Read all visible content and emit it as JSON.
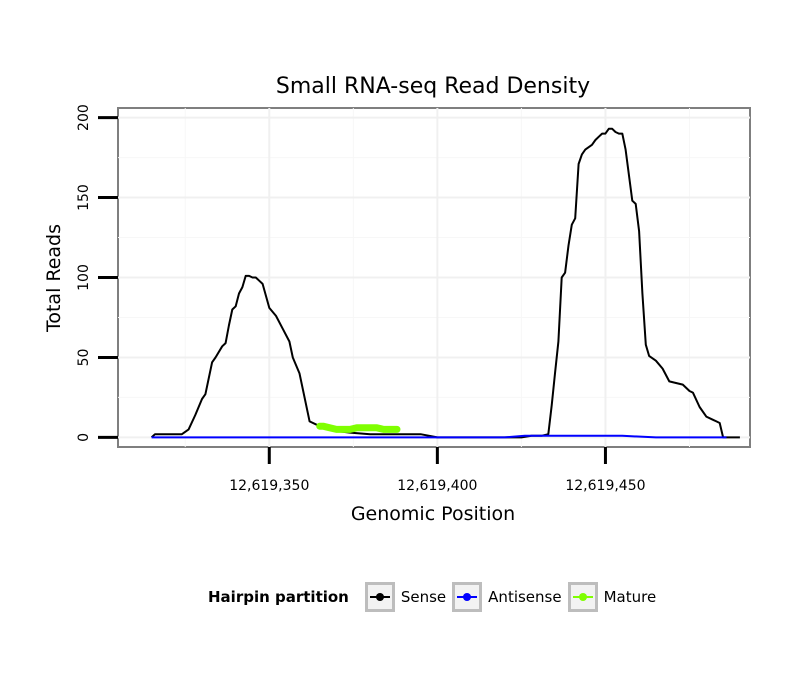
{
  "chart_data": {
    "type": "line",
    "title": "Small RNA-seq Read Density",
    "xlabel": "Genomic Position",
    "ylabel": "Total Reads",
    "xlim": [
      12619305,
      12619493
    ],
    "ylim": [
      -6,
      206
    ],
    "x_ticks": [
      12619350,
      12619400,
      12619450
    ],
    "x_tick_labels": [
      "12,619,350",
      "12,619,400",
      "12,619,450"
    ],
    "y_ticks": [
      0,
      50,
      100,
      150,
      200
    ],
    "y_tick_labels": [
      "0",
      "50",
      "100",
      "150",
      "200"
    ],
    "grid": true,
    "legend": {
      "title": "Hairpin partition",
      "position": "bottom"
    },
    "series": [
      {
        "name": "Sense",
        "color": "#000000",
        "x": [
          12619315,
          12619316,
          12619324,
          12619326,
          12619328,
          12619330,
          12619331,
          12619333,
          12619334,
          12619336,
          12619337,
          12619338,
          12619339,
          12619340,
          12619341,
          12619342,
          12619343,
          12619344,
          12619345,
          12619346,
          12619347,
          12619348,
          12619350,
          12619352,
          12619354,
          12619356,
          12619357,
          12619359,
          12619362,
          12619365,
          12619370,
          12619374,
          12619380,
          12619385,
          12619390,
          12619395,
          12619400,
          12619405,
          12619410,
          12619415,
          12619420,
          12619425,
          12619428,
          12619430,
          12619431,
          12619433,
          12619434,
          12619435,
          12619436,
          12619437,
          12619438,
          12619439,
          12619440,
          12619441,
          12619442,
          12619443,
          12619444,
          12619446,
          12619447,
          12619448,
          12619449,
          12619450,
          12619451,
          12619452,
          12619453,
          12619454,
          12619455,
          12619456,
          12619458,
          12619459,
          12619460,
          12619461,
          12619462,
          12619463,
          12619465,
          12619467,
          12619469,
          12619471,
          12619473,
          12619475,
          12619476,
          12619478,
          12619480,
          12619482,
          12619483,
          12619484,
          12619485,
          12619490
        ],
        "values": [
          0,
          2,
          2,
          5,
          14,
          24,
          27,
          47,
          50,
          57,
          59,
          70,
          80,
          82,
          90,
          94,
          101,
          101,
          100,
          100,
          98,
          96,
          81,
          76,
          68,
          60,
          50,
          40,
          10,
          7,
          4,
          3,
          2,
          2,
          2,
          2,
          0,
          0,
          0,
          0,
          0,
          0,
          1,
          1,
          1,
          2,
          20,
          40,
          60,
          100,
          103,
          120,
          133,
          137,
          171,
          177,
          180,
          183,
          186,
          188,
          190,
          190,
          193,
          193,
          191,
          190,
          190,
          180,
          148,
          146,
          129,
          90,
          58,
          51,
          48,
          43,
          35,
          34,
          33,
          29,
          28,
          19,
          13,
          11,
          10,
          9,
          0,
          0
        ]
      },
      {
        "name": "Antisense",
        "color": "#0000ff",
        "x": [
          12619315,
          12619420,
          12619426,
          12619440,
          12619446,
          12619455,
          12619465,
          12619480,
          12619486
        ],
        "values": [
          0,
          0,
          1,
          1,
          1,
          1,
          0,
          0,
          0
        ]
      },
      {
        "name": "Mature",
        "color": "#7fff00",
        "x": [
          12619365,
          12619366,
          12619368,
          12619370,
          12619372,
          12619374,
          12619376,
          12619378,
          12619380,
          12619382,
          12619384,
          12619386,
          12619388
        ],
        "values": [
          7,
          7,
          6,
          5,
          5,
          5,
          6,
          6,
          6,
          6,
          5,
          5,
          5
        ]
      }
    ]
  }
}
